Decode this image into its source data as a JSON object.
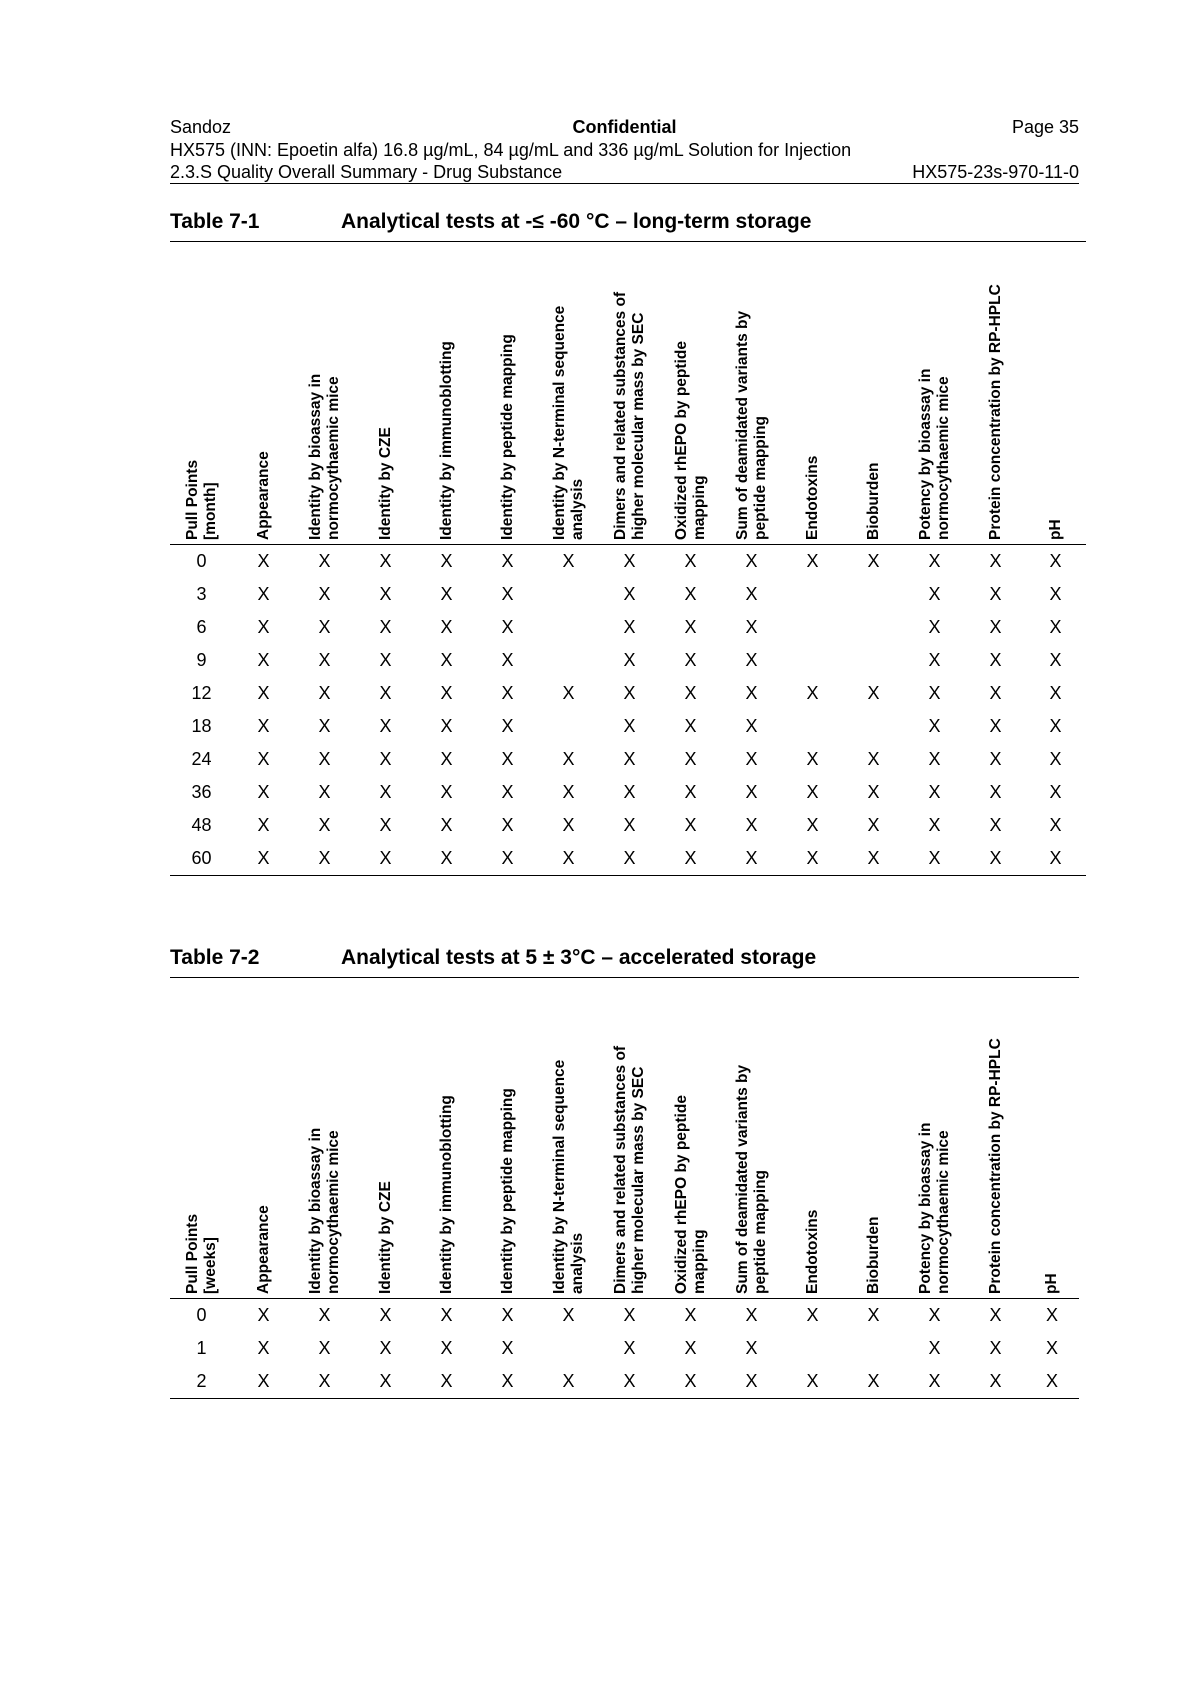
{
  "header": {
    "company": "Sandoz",
    "confidential": "Confidential",
    "page": "Page 35",
    "product": "HX575 (INN: Epoetin alfa) 16.8 µg/mL, 84 µg/mL and 336 µg/mL Solution for Injection",
    "section": "2.3.S Quality Overall Summary - Drug Substance",
    "doc_id": "HX575-23s-970-11-0"
  },
  "tables": [
    {
      "number": "Table 7-1",
      "caption": "Analytical tests at -≤ -60 °C – long-term storage",
      "columns": [
        [
          "Pull Points",
          "[month]"
        ],
        [
          "Appearance"
        ],
        [
          "Identity by bioassay in",
          "normocythaemic mice"
        ],
        [
          "Identity by CZE"
        ],
        [
          "Identity by immunoblotting"
        ],
        [
          "Identity by peptide mapping"
        ],
        [
          "Identity by N-terminal sequence",
          "analysis"
        ],
        [
          "Dimers and related substances of",
          "higher molecular mass by SEC"
        ],
        [
          "Oxidized rhEPO by peptide",
          "mapping"
        ],
        [
          "Sum of deamidated variants by",
          "peptide mapping"
        ],
        [
          "Endotoxins"
        ],
        [
          "Bioburden"
        ],
        [
          "Potency by bioassay in",
          "normocythaemic mice"
        ],
        [
          "Protein concentration by RP-HPLC"
        ],
        [
          "pH"
        ]
      ],
      "rows": [
        [
          "0",
          "X",
          "X",
          "X",
          "X",
          "X",
          "X",
          "X",
          "X",
          "X",
          "X",
          "X",
          "X",
          "X",
          "X"
        ],
        [
          "3",
          "X",
          "X",
          "X",
          "X",
          "X",
          "",
          "X",
          "X",
          "X",
          "",
          "",
          "X",
          "X",
          "X"
        ],
        [
          "6",
          "X",
          "X",
          "X",
          "X",
          "X",
          "",
          "X",
          "X",
          "X",
          "",
          "",
          "X",
          "X",
          "X"
        ],
        [
          "9",
          "X",
          "X",
          "X",
          "X",
          "X",
          "",
          "X",
          "X",
          "X",
          "",
          "",
          "X",
          "X",
          "X"
        ],
        [
          "12",
          "X",
          "X",
          "X",
          "X",
          "X",
          "X",
          "X",
          "X",
          "X",
          "X",
          "X",
          "X",
          "X",
          "X"
        ],
        [
          "18",
          "X",
          "X",
          "X",
          "X",
          "X",
          "",
          "X",
          "X",
          "X",
          "",
          "",
          "X",
          "X",
          "X"
        ],
        [
          "24",
          "X",
          "X",
          "X",
          "X",
          "X",
          "X",
          "X",
          "X",
          "X",
          "X",
          "X",
          "X",
          "X",
          "X"
        ],
        [
          "36",
          "X",
          "X",
          "X",
          "X",
          "X",
          "X",
          "X",
          "X",
          "X",
          "X",
          "X",
          "X",
          "X",
          "X"
        ],
        [
          "48",
          "X",
          "X",
          "X",
          "X",
          "X",
          "X",
          "X",
          "X",
          "X",
          "X",
          "X",
          "X",
          "X",
          "X"
        ],
        [
          "60",
          "X",
          "X",
          "X",
          "X",
          "X",
          "X",
          "X",
          "X",
          "X",
          "X",
          "X",
          "X",
          "X",
          "X"
        ]
      ]
    },
    {
      "number": "Table 7-2",
      "caption": "Analytical tests at 5 ± 3°C – accelerated storage",
      "columns": [
        [
          "Pull Points",
          "[weeks]"
        ],
        [
          "Appearance"
        ],
        [
          "Identity by bioassay in",
          "normocythaemic mice"
        ],
        [
          "Identity by CZE"
        ],
        [
          "Identity by immunoblotting"
        ],
        [
          "Identity by peptide mapping"
        ],
        [
          "Identity by N-terminal sequence",
          "analysis"
        ],
        [
          "Dimers and related substances of",
          "higher molecular mass by SEC"
        ],
        [
          "Oxidized rhEPO by peptide",
          "mapping"
        ],
        [
          "Sum of deamidated variants by",
          "peptide mapping"
        ],
        [
          "Endotoxins"
        ],
        [
          "Bioburden"
        ],
        [
          "Potency by bioassay in",
          "normocythaemic mice"
        ],
        [
          "Protein concentration by RP-HPLC"
        ],
        [
          "pH"
        ]
      ],
      "rows": [
        [
          "0",
          "X",
          "X",
          "X",
          "X",
          "X",
          "X",
          "X",
          "X",
          "X",
          "X",
          "X",
          "X",
          "X",
          "X"
        ],
        [
          "1",
          "X",
          "X",
          "X",
          "X",
          "X",
          "",
          "X",
          "X",
          "X",
          "",
          "",
          "X",
          "X",
          "X"
        ],
        [
          "2",
          "X",
          "X",
          "X",
          "X",
          "X",
          "X",
          "X",
          "X",
          "X",
          "X",
          "X",
          "X",
          "X",
          "X"
        ]
      ]
    }
  ]
}
